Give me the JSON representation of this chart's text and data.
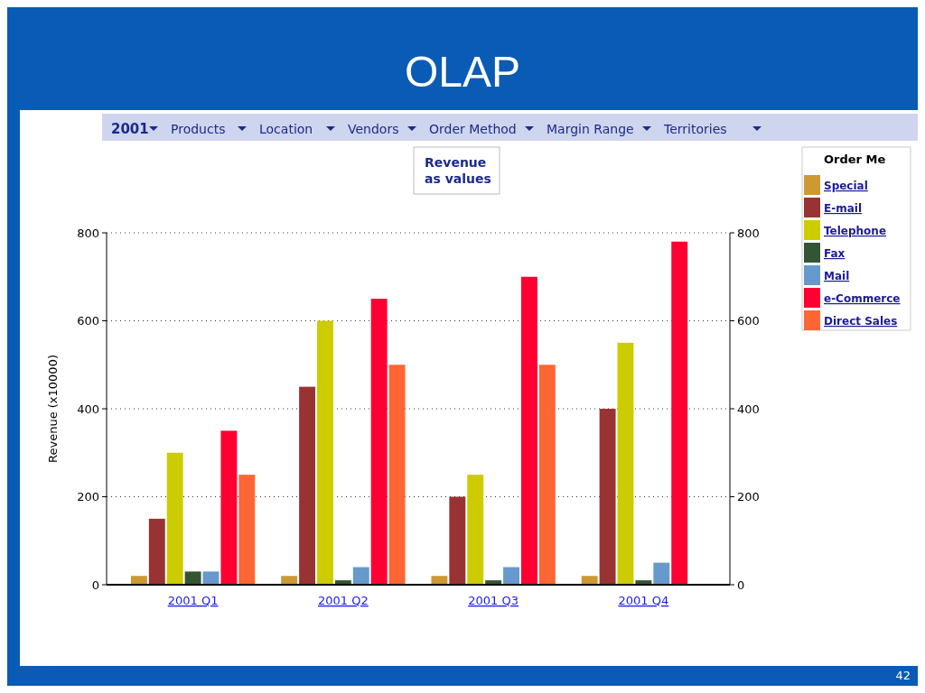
{
  "chart_data": {
    "type": "bar",
    "title": "OLAP",
    "ylabel": "Revenue (x10000)",
    "legend_title": "Order Me",
    "legend": "right",
    "grid": "y",
    "categories": [
      "2001 Q1",
      "2001 Q2",
      "2001 Q3",
      "2001 Q4"
    ],
    "series": [
      {
        "name": "Special",
        "color": "#cc9933",
        "values": [
          20,
          20,
          20,
          20
        ]
      },
      {
        "name": "E-mail",
        "color": "#993333",
        "values": [
          150,
          450,
          200,
          400
        ]
      },
      {
        "name": "Telephone",
        "color": "#cccc00",
        "values": [
          300,
          600,
          250,
          550
        ]
      },
      {
        "name": "Fax",
        "color": "#335533",
        "values": [
          30,
          10,
          10,
          10
        ]
      },
      {
        "name": "Mail",
        "color": "#6699cc",
        "values": [
          30,
          40,
          40,
          50
        ]
      },
      {
        "name": "e-Commerce",
        "color": "#ff0033",
        "values": [
          350,
          650,
          700,
          780
        ]
      },
      {
        "name": "Direct Sales",
        "color": "#ff6633",
        "values": [
          250,
          500,
          500,
          null
        ]
      }
    ],
    "ylim": [
      0,
      800
    ],
    "yticks": [
      0,
      200,
      400,
      600,
      800
    ],
    "y2lim": [
      0,
      800
    ],
    "y2ticks": [
      0,
      200,
      400,
      600,
      800
    ],
    "annotations": [
      "2001",
      "Products",
      "Location",
      "Vendors",
      "Order Method",
      "Margin Range",
      "Territories",
      "Revenue as values",
      "42"
    ]
  }
}
